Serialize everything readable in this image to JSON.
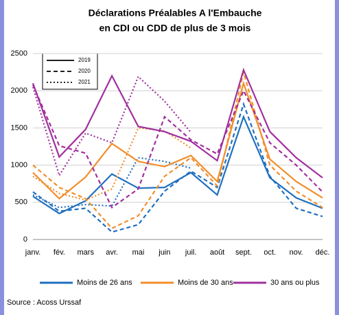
{
  "chart_data": {
    "type": "line",
    "title": "Déclarations Préalables A l'Embauche",
    "subtitle": "en CDI ou CDD de plus de 3 mois",
    "categories": [
      "janv.",
      "fév.",
      "mars",
      "avr.",
      "mai",
      "juin",
      "juil.",
      "août",
      "sept.",
      "oct.",
      "nov.",
      "déc."
    ],
    "ylim": [
      0,
      2500
    ],
    "yticks": [
      0,
      500,
      1000,
      1500,
      2000,
      2500
    ],
    "grid": true,
    "line_styles": [
      {
        "name": "2019",
        "dash": "solid"
      },
      {
        "name": "2020",
        "dash": "dashed"
      },
      {
        "name": "2021",
        "dash": "dotted"
      }
    ],
    "series": [
      {
        "name": "Moins de 26 ans",
        "color": "#1f6fc0",
        "years": [
          {
            "values": [
              580,
              350,
              520,
              880,
              690,
              700,
              900,
              600,
              1650,
              830,
              560,
              420
            ]
          },
          {
            "values": [
              640,
              380,
              420,
              100,
              200,
              650,
              920,
              700,
              1820,
              850,
              420,
              310
            ]
          },
          {
            "values": [
              600,
              430,
              470,
              450,
              1100,
              1050,
              960,
              null,
              null,
              null,
              null,
              null
            ]
          }
        ]
      },
      {
        "name": "Moins de 30 ans",
        "color": "#f28e2b",
        "years": [
          {
            "values": [
              900,
              550,
              840,
              1290,
              1050,
              980,
              1130,
              780,
              2100,
              1080,
              780,
              560
            ]
          },
          {
            "values": [
              1000,
              700,
              550,
              150,
              320,
              850,
              1100,
              720,
              2250,
              1000,
              650,
              430
            ]
          },
          {
            "values": [
              850,
              620,
              530,
              680,
              1500,
              1460,
              1230,
              null,
              null,
              null,
              null,
              null
            ]
          }
        ]
      },
      {
        "name": "30 ans ou plus",
        "color": "#a0309e",
        "years": [
          {
            "values": [
              2100,
              1110,
              1480,
              2200,
              1520,
              1450,
              1320,
              1060,
              2280,
              1450,
              1100,
              830
            ]
          },
          {
            "values": [
              2080,
              1260,
              1160,
              430,
              680,
              1650,
              1340,
              1150,
              2000,
              1300,
              1000,
              640
            ]
          },
          {
            "values": [
              2050,
              860,
              1430,
              1300,
              2190,
              1860,
              1440,
              null,
              null,
              null,
              null,
              null
            ]
          }
        ]
      }
    ],
    "source": "Source : Acoss Urssaf"
  }
}
